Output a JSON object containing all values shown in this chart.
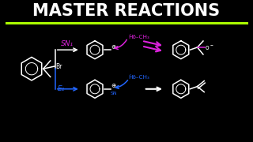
{
  "bg_color": "#000000",
  "title": "MASTER REACTIONS",
  "title_color": "#ffffff",
  "title_fontsize": 15,
  "underline_color": "#aaff00",
  "sn1_label": "SN₁",
  "e1_label": "E₁",
  "sn1_color": "#dd22dd",
  "e1_color": "#2266ff",
  "white": "#ffffff",
  "plus_sign": "⊕",
  "br_label": "Br",
  "ho_ch3": "Hō–CH₃",
  "o_label": "o–",
  "fig_w": 3.2,
  "fig_h": 1.8,
  "dpi": 100
}
